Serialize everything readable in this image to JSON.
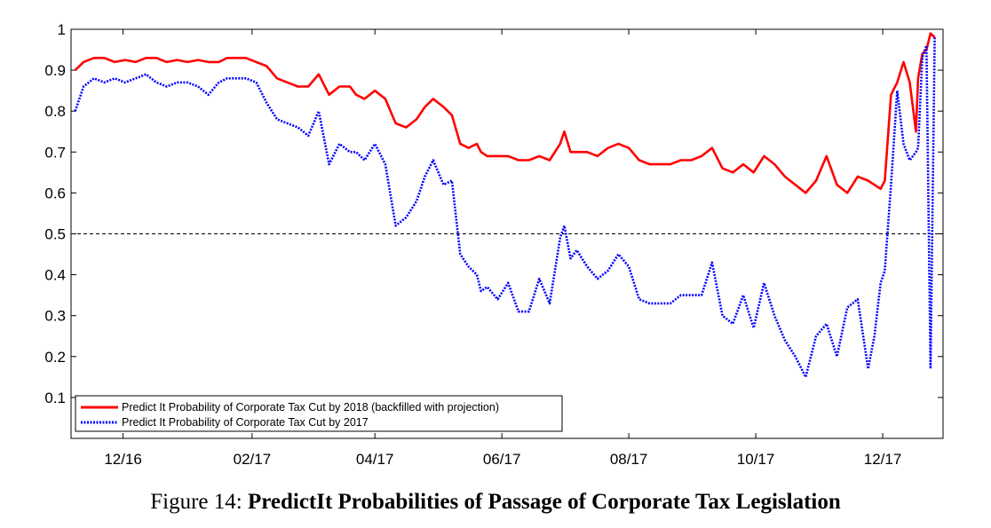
{
  "caption": {
    "label": "Figure 14:",
    "title": "PredictIt Probabilities of Passage of Corporate Tax Legislation"
  },
  "chart_data": {
    "type": "line",
    "title": "",
    "xlabel": "",
    "ylabel": "",
    "ylim": [
      0,
      1
    ],
    "xlim": [
      "2016-11-06",
      "2017-12-30"
    ],
    "grid": false,
    "legend_position": "bottom-left",
    "yticks": [
      0.1,
      0.2,
      0.3,
      0.4,
      0.5,
      0.6,
      0.7,
      0.8,
      0.9,
      1
    ],
    "ytick_labels": [
      "0.1",
      "0.2",
      "0.3",
      "0.4",
      "0.5",
      "0.6",
      "0.7",
      "0.8",
      "0.9",
      "1"
    ],
    "xticks": [
      "2016-12-01",
      "2017-02-01",
      "2017-04-01",
      "2017-06-01",
      "2017-08-01",
      "2017-10-01",
      "2017-12-01"
    ],
    "xtick_labels": [
      "12/16",
      "02/17",
      "04/17",
      "06/17",
      "08/17",
      "10/17",
      "12/17"
    ],
    "reference_line": {
      "y": 0.5,
      "style": "dashed",
      "color": "#000000"
    },
    "series": [
      {
        "name": "Predict It Probability of Corporate Tax Cut by 2018 (backfilled with projection)",
        "color": "#ff0000",
        "style": "solid",
        "x": [
          "2016-11-08",
          "2016-11-12",
          "2016-11-17",
          "2016-11-22",
          "2016-11-27",
          "2016-12-02",
          "2016-12-07",
          "2016-12-12",
          "2016-12-17",
          "2016-12-22",
          "2016-12-27",
          "2017-01-01",
          "2017-01-06",
          "2017-01-11",
          "2017-01-16",
          "2017-01-20",
          "2017-01-24",
          "2017-01-29",
          "2017-02-03",
          "2017-02-08",
          "2017-02-13",
          "2017-02-18",
          "2017-02-23",
          "2017-02-28",
          "2017-03-05",
          "2017-03-10",
          "2017-03-15",
          "2017-03-20",
          "2017-03-23",
          "2017-03-27",
          "2017-04-01",
          "2017-04-06",
          "2017-04-11",
          "2017-04-16",
          "2017-04-21",
          "2017-04-25",
          "2017-04-29",
          "2017-05-04",
          "2017-05-08",
          "2017-05-12",
          "2017-05-16",
          "2017-05-20",
          "2017-05-22",
          "2017-05-25",
          "2017-05-30",
          "2017-06-04",
          "2017-06-09",
          "2017-06-14",
          "2017-06-19",
          "2017-06-24",
          "2017-06-29",
          "2017-07-01",
          "2017-07-04",
          "2017-07-07",
          "2017-07-12",
          "2017-07-17",
          "2017-07-22",
          "2017-07-27",
          "2017-08-01",
          "2017-08-06",
          "2017-08-11",
          "2017-08-16",
          "2017-08-21",
          "2017-08-26",
          "2017-08-31",
          "2017-09-05",
          "2017-09-10",
          "2017-09-15",
          "2017-09-20",
          "2017-09-25",
          "2017-09-30",
          "2017-10-05",
          "2017-10-10",
          "2017-10-15",
          "2017-10-20",
          "2017-10-25",
          "2017-10-30",
          "2017-11-04",
          "2017-11-09",
          "2017-11-14",
          "2017-11-19",
          "2017-11-24",
          "2017-11-27",
          "2017-11-30",
          "2017-12-02",
          "2017-12-05",
          "2017-12-08",
          "2017-12-11",
          "2017-12-14",
          "2017-12-17",
          "2017-12-18",
          "2017-12-20",
          "2017-12-22",
          "2017-12-24",
          "2017-12-26"
        ],
        "values": [
          0.9,
          0.92,
          0.93,
          0.93,
          0.92,
          0.925,
          0.92,
          0.93,
          0.93,
          0.92,
          0.925,
          0.92,
          0.925,
          0.92,
          0.92,
          0.93,
          0.93,
          0.93,
          0.92,
          0.91,
          0.88,
          0.87,
          0.86,
          0.86,
          0.89,
          0.84,
          0.86,
          0.86,
          0.84,
          0.83,
          0.85,
          0.83,
          0.77,
          0.76,
          0.78,
          0.81,
          0.83,
          0.81,
          0.79,
          0.72,
          0.71,
          0.72,
          0.7,
          0.69,
          0.69,
          0.69,
          0.68,
          0.68,
          0.69,
          0.68,
          0.72,
          0.75,
          0.7,
          0.7,
          0.7,
          0.69,
          0.71,
          0.72,
          0.71,
          0.68,
          0.67,
          0.67,
          0.67,
          0.68,
          0.68,
          0.69,
          0.71,
          0.66,
          0.65,
          0.67,
          0.65,
          0.69,
          0.67,
          0.64,
          0.62,
          0.6,
          0.63,
          0.69,
          0.62,
          0.6,
          0.64,
          0.63,
          0.62,
          0.61,
          0.63,
          0.84,
          0.87,
          0.92,
          0.87,
          0.75,
          0.88,
          0.94,
          0.95,
          0.99,
          0.98
        ]
      },
      {
        "name": "Predict It Probability of Corporate Tax Cut by 2017",
        "color": "#0000ff",
        "style": "dotted",
        "x": [
          "2016-11-08",
          "2016-11-12",
          "2016-11-17",
          "2016-11-22",
          "2016-11-27",
          "2016-12-02",
          "2016-12-07",
          "2016-12-12",
          "2016-12-17",
          "2016-12-22",
          "2016-12-27",
          "2017-01-01",
          "2017-01-06",
          "2017-01-11",
          "2017-01-16",
          "2017-01-20",
          "2017-01-24",
          "2017-01-29",
          "2017-02-03",
          "2017-02-08",
          "2017-02-13",
          "2017-02-18",
          "2017-02-23",
          "2017-02-28",
          "2017-03-05",
          "2017-03-10",
          "2017-03-15",
          "2017-03-20",
          "2017-03-23",
          "2017-03-27",
          "2017-04-01",
          "2017-04-06",
          "2017-04-11",
          "2017-04-16",
          "2017-04-21",
          "2017-04-25",
          "2017-04-29",
          "2017-05-04",
          "2017-05-08",
          "2017-05-12",
          "2017-05-16",
          "2017-05-20",
          "2017-05-22",
          "2017-05-25",
          "2017-05-30",
          "2017-06-04",
          "2017-06-09",
          "2017-06-14",
          "2017-06-19",
          "2017-06-24",
          "2017-06-29",
          "2017-07-01",
          "2017-07-04",
          "2017-07-07",
          "2017-07-12",
          "2017-07-17",
          "2017-07-22",
          "2017-07-27",
          "2017-08-01",
          "2017-08-06",
          "2017-08-11",
          "2017-08-16",
          "2017-08-21",
          "2017-08-26",
          "2017-08-31",
          "2017-09-05",
          "2017-09-10",
          "2017-09-15",
          "2017-09-20",
          "2017-09-25",
          "2017-09-30",
          "2017-10-05",
          "2017-10-10",
          "2017-10-15",
          "2017-10-20",
          "2017-10-25",
          "2017-10-30",
          "2017-11-04",
          "2017-11-09",
          "2017-11-14",
          "2017-11-19",
          "2017-11-24",
          "2017-11-27",
          "2017-11-30",
          "2017-12-02",
          "2017-12-05",
          "2017-12-08",
          "2017-12-11",
          "2017-12-14",
          "2017-12-17",
          "2017-12-18",
          "2017-12-20",
          "2017-12-22",
          "2017-12-24",
          "2017-12-26"
        ],
        "values": [
          0.8,
          0.86,
          0.88,
          0.87,
          0.88,
          0.87,
          0.88,
          0.89,
          0.87,
          0.86,
          0.87,
          0.87,
          0.86,
          0.84,
          0.87,
          0.88,
          0.88,
          0.88,
          0.87,
          0.82,
          0.78,
          0.77,
          0.76,
          0.74,
          0.8,
          0.67,
          0.72,
          0.7,
          0.7,
          0.68,
          0.72,
          0.67,
          0.52,
          0.54,
          0.58,
          0.64,
          0.68,
          0.62,
          0.63,
          0.45,
          0.42,
          0.4,
          0.36,
          0.37,
          0.34,
          0.38,
          0.31,
          0.31,
          0.39,
          0.33,
          0.49,
          0.52,
          0.44,
          0.46,
          0.42,
          0.39,
          0.41,
          0.45,
          0.42,
          0.34,
          0.33,
          0.33,
          0.33,
          0.35,
          0.35,
          0.35,
          0.43,
          0.3,
          0.28,
          0.35,
          0.27,
          0.38,
          0.3,
          0.24,
          0.2,
          0.15,
          0.25,
          0.28,
          0.2,
          0.32,
          0.34,
          0.17,
          0.25,
          0.38,
          0.41,
          0.62,
          0.85,
          0.72,
          0.68,
          0.7,
          0.71,
          0.93,
          0.96,
          0.17,
          0.98
        ]
      }
    ]
  }
}
